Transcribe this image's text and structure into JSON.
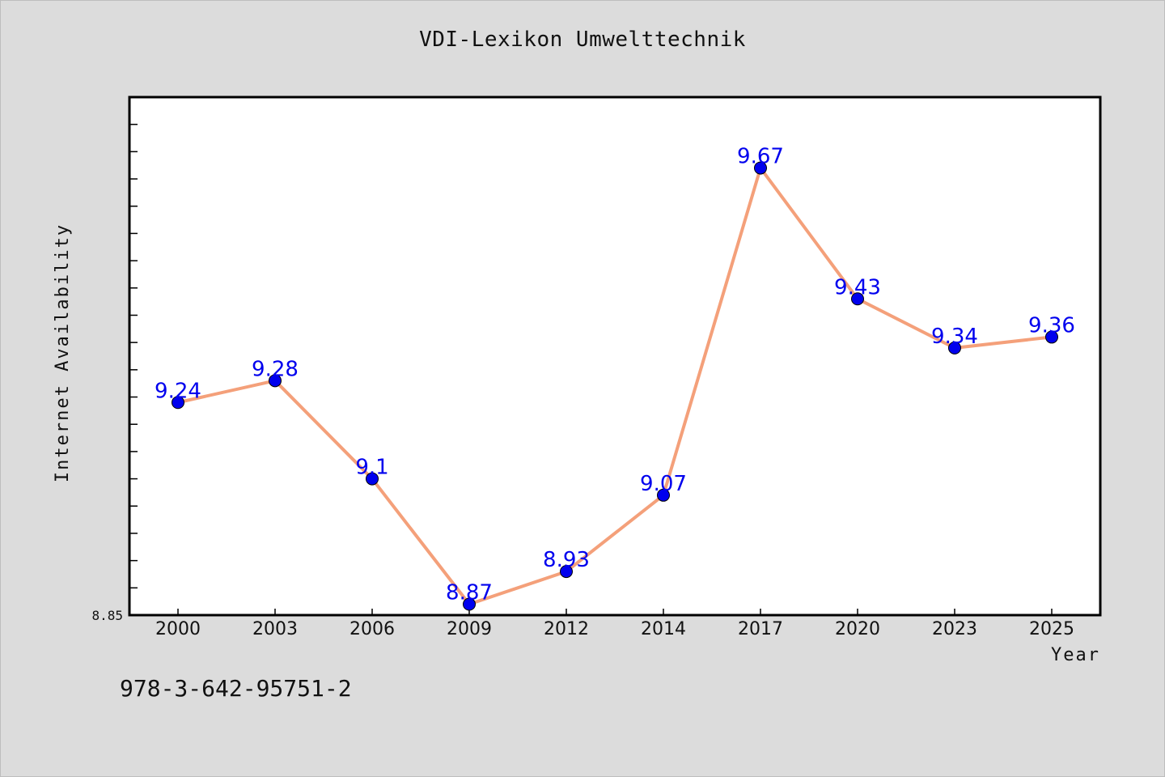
{
  "title": "VDI-Lexikon Umwelttechnik",
  "footnote": "978-3-642-95751-2",
  "colors": {
    "background": "#dcdcdc",
    "plot_background": "#ffffff",
    "line": "#f4a07a",
    "marker": "#0000ee",
    "label": "#0000ee"
  },
  "chart_data": {
    "type": "line",
    "title": "VDI-Lexikon Umwelttechnik",
    "xlabel": "Year",
    "ylabel": "Internet Availability",
    "categories": [
      "2000",
      "2003",
      "2006",
      "2009",
      "2012",
      "2014",
      "2017",
      "2020",
      "2023",
      "2025"
    ],
    "series": [
      {
        "values": [
          9.24,
          9.28,
          9.1,
          8.87,
          8.93,
          9.07,
          9.67,
          9.43,
          9.34,
          9.36
        ],
        "labels": [
          "9.24",
          "9.28",
          "9.1",
          "8.87",
          "8.93",
          "9.07",
          "9.67",
          "9.43",
          "9.34",
          "9.36"
        ]
      }
    ],
    "ylim": [
      8.85,
      9.8
    ],
    "y_tick_labels": [
      "8.85"
    ],
    "grid": false,
    "legend": "none"
  }
}
